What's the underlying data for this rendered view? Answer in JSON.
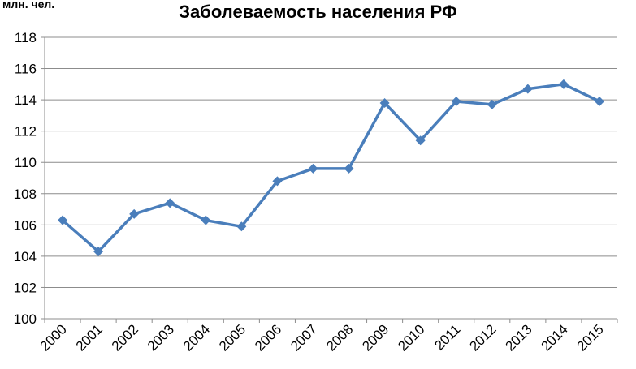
{
  "chart_data": {
    "type": "line",
    "title": "Заболеваемость населения РФ",
    "ylabel": "млн. чел.",
    "xlabel": "",
    "categories": [
      "2000",
      "2001",
      "2002",
      "2003",
      "2004",
      "2005",
      "2006",
      "2007",
      "2008",
      "2009",
      "2010",
      "2011",
      "2012",
      "2013",
      "2014",
      "2015"
    ],
    "series": [
      {
        "values": [
          106.3,
          104.3,
          106.7,
          107.4,
          106.3,
          105.9,
          108.8,
          109.6,
          109.6,
          113.8,
          111.4,
          113.9,
          113.7,
          114.7,
          115.0,
          113.9
        ],
        "color": "#4a7ebb"
      }
    ],
    "ylim": [
      100,
      118
    ],
    "yticks": [
      "100",
      "102",
      "104",
      "106",
      "108",
      "110",
      "112",
      "114",
      "116",
      "118"
    ],
    "grid": true,
    "legend": "none"
  }
}
